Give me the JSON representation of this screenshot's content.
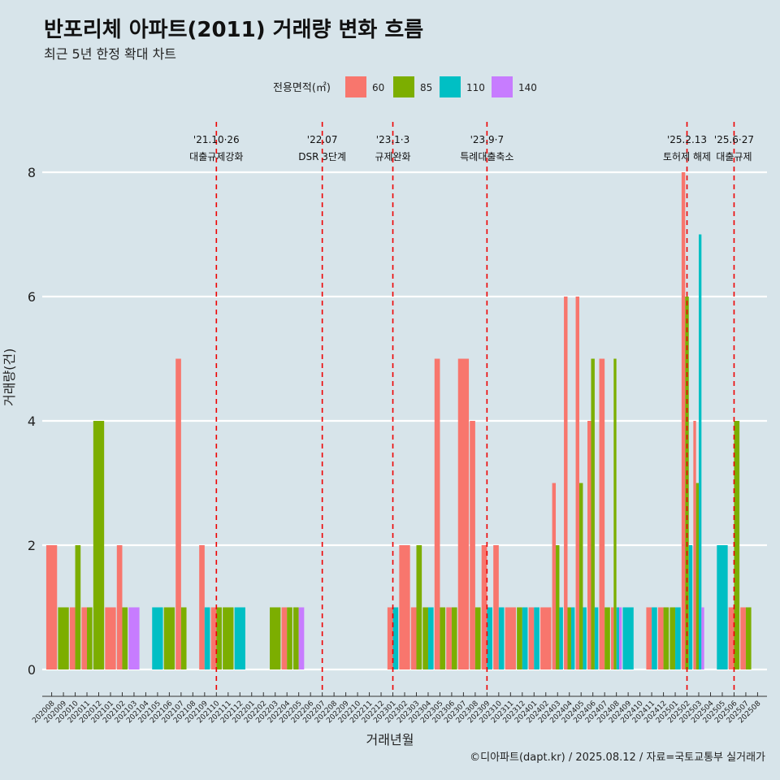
{
  "title": "반포리체 아파트(2011) 거래량 변화 흐름",
  "subtitle": "최근 5년 한정 확대 차트",
  "caption": "©디아파트(dapt.kr) / 2025.08.12 / 자료=국토교통부 실거래가",
  "legend_title": "전용면적(㎡)",
  "colors": {
    "60": "#f8766d",
    "85": "#7cae00",
    "110": "#00bfc4",
    "140": "#c77cff",
    "background": "#d7e4ea",
    "vline": "#ee0000"
  },
  "chart_data": {
    "type": "bar",
    "xlabel": "거래년월",
    "ylabel": "거래량(건)",
    "ylim": [
      0,
      8
    ],
    "yticks": [
      0,
      2,
      4,
      6,
      8
    ],
    "grid": true,
    "legend_position": "top",
    "categories": [
      "202008",
      "202009",
      "202010",
      "202011",
      "202012",
      "202101",
      "202102",
      "202103",
      "202104",
      "202105",
      "202106",
      "202107",
      "202108",
      "202109",
      "202110",
      "202111",
      "202112",
      "202201",
      "202202",
      "202203",
      "202204",
      "202205",
      "202206",
      "202207",
      "202208",
      "202209",
      "202210",
      "202211",
      "202212",
      "202301",
      "202302",
      "202303",
      "202304",
      "202305",
      "202306",
      "202307",
      "202308",
      "202309",
      "202310",
      "202311",
      "202312",
      "202401",
      "202402",
      "202403",
      "202404",
      "202405",
      "202406",
      "202407",
      "202408",
      "202409",
      "202410",
      "202411",
      "202412",
      "202501",
      "202502",
      "202503",
      "202504",
      "202505",
      "202506",
      "202507",
      "202508"
    ],
    "series": [
      {
        "name": "60",
        "points": [
          [
            "202008",
            2
          ],
          [
            "202010",
            1
          ],
          [
            "202011",
            1
          ],
          [
            "202101",
            1
          ],
          [
            "202102",
            2
          ],
          [
            "202107",
            5
          ],
          [
            "202109",
            2
          ],
          [
            "202110",
            1
          ],
          [
            "202204",
            1
          ],
          [
            "202301",
            1
          ],
          [
            "202302",
            2
          ],
          [
            "202303",
            1
          ],
          [
            "202305",
            5
          ],
          [
            "202306",
            1
          ],
          [
            "202307",
            5
          ],
          [
            "202308",
            4
          ],
          [
            "202309",
            2
          ],
          [
            "202310",
            2
          ],
          [
            "202311",
            1
          ],
          [
            "202401",
            1
          ],
          [
            "202402",
            1
          ],
          [
            "202403",
            3
          ],
          [
            "202404",
            6
          ],
          [
            "202405",
            6
          ],
          [
            "202406",
            4
          ],
          [
            "202407",
            5
          ],
          [
            "202408",
            1
          ],
          [
            "202411",
            1
          ],
          [
            "202412",
            1
          ],
          [
            "202502",
            8
          ],
          [
            "202503",
            4
          ],
          [
            "202506",
            1
          ],
          [
            "202507",
            1
          ]
        ]
      },
      {
        "name": "85",
        "points": [
          [
            "202009",
            1
          ],
          [
            "202010",
            2
          ],
          [
            "202011",
            1
          ],
          [
            "202012",
            4
          ],
          [
            "202102",
            1
          ],
          [
            "202106",
            1
          ],
          [
            "202107",
            1
          ],
          [
            "202110",
            1
          ],
          [
            "202111",
            1
          ],
          [
            "202203",
            1
          ],
          [
            "202204",
            1
          ],
          [
            "202205",
            1
          ],
          [
            "202303",
            2
          ],
          [
            "202304",
            1
          ],
          [
            "202305",
            1
          ],
          [
            "202306",
            1
          ],
          [
            "202308",
            1
          ],
          [
            "202312",
            1
          ],
          [
            "202403",
            2
          ],
          [
            "202404",
            1
          ],
          [
            "202405",
            3
          ],
          [
            "202406",
            5
          ],
          [
            "202407",
            1
          ],
          [
            "202408",
            5
          ],
          [
            "202412",
            1
          ],
          [
            "202501",
            1
          ],
          [
            "202502",
            6
          ],
          [
            "202503",
            3
          ],
          [
            "202506",
            4
          ],
          [
            "202507",
            1
          ]
        ]
      },
      {
        "name": "110",
        "points": [
          [
            "202105",
            1
          ],
          [
            "202109",
            1
          ],
          [
            "202112",
            1
          ],
          [
            "202301",
            1
          ],
          [
            "202304",
            1
          ],
          [
            "202309",
            1
          ],
          [
            "202310",
            1
          ],
          [
            "202312",
            1
          ],
          [
            "202401",
            1
          ],
          [
            "202403",
            1
          ],
          [
            "202404",
            1
          ],
          [
            "202405",
            1
          ],
          [
            "202406",
            1
          ],
          [
            "202408",
            1
          ],
          [
            "202409",
            1
          ],
          [
            "202411",
            1
          ],
          [
            "202501",
            1
          ],
          [
            "202502",
            2
          ],
          [
            "202503",
            7
          ],
          [
            "202505",
            2
          ]
        ]
      },
      {
        "name": "140",
        "points": [
          [
            "202103",
            1
          ],
          [
            "202205",
            1
          ],
          [
            "202408",
            1
          ],
          [
            "202503",
            1
          ]
        ]
      }
    ],
    "annotations": [
      {
        "x": "202110",
        "date": "'21.10·26",
        "label": "대출규제강화"
      },
      {
        "x": "202207",
        "date": "'22.07",
        "label": "DSR 3단계"
      },
      {
        "x": "202301",
        "date": "'23.1·3",
        "label": "규제완화"
      },
      {
        "x": "202309",
        "date": "'23.9·7",
        "label": "특례대출축소"
      },
      {
        "x": "202502",
        "date": "'25.2.13",
        "label": "토허제 해제"
      },
      {
        "x": "202506",
        "date": "'25.6·27",
        "label": "대출규제"
      }
    ]
  }
}
